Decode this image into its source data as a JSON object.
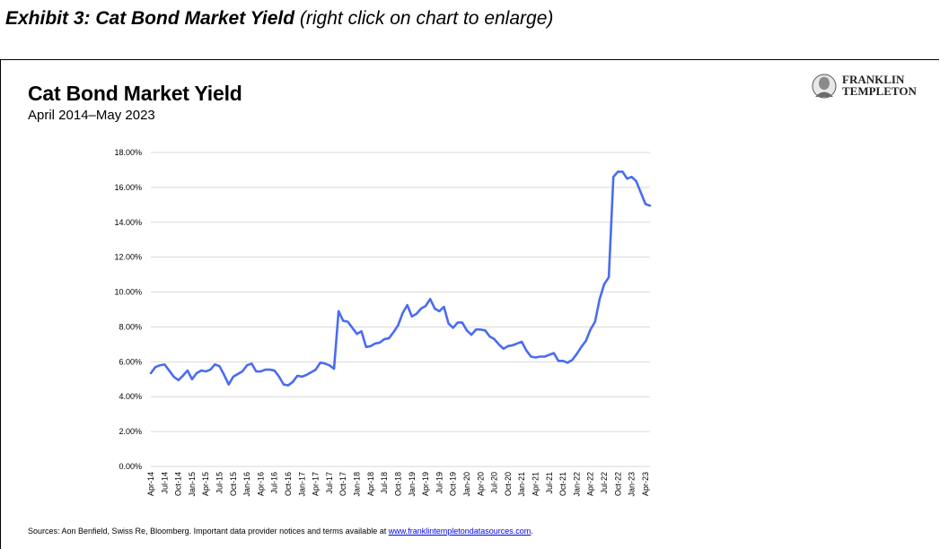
{
  "heading": {
    "bold": "Exhibit 3: Cat Bond Market Yield",
    "note": "(right click on chart to enlarge)"
  },
  "logo": {
    "line1": "FRANKLIN",
    "line2": "TEMPLETON"
  },
  "footer": {
    "text": "Sources: Aon Benfield, Swiss Re, Bloomberg. Important data provider notices and terms available at ",
    "link": "www.franklintempletondatasources.com",
    "end": "."
  },
  "colors": {
    "line": "#4a6cf0",
    "grid": "#d9d9d9"
  },
  "chart_data": {
    "type": "line",
    "title": "Cat Bond Market Yield",
    "subtitle": "April 2014–May 2023",
    "xlabel": "",
    "ylabel": "",
    "ylim": [
      0,
      18
    ],
    "y_ticks": [
      "0.00%",
      "2.00%",
      "4.00%",
      "6.00%",
      "8.00%",
      "10.00%",
      "12.00%",
      "14.00%",
      "16.00%",
      "18.00%"
    ],
    "x_ticks": [
      "Apr-14",
      "Jul-14",
      "Oct-14",
      "Jan-15",
      "Apr-15",
      "Jul-15",
      "Oct-15",
      "Jan-16",
      "Apr-16",
      "Jul-16",
      "Oct-16",
      "Jan-17",
      "Apr-17",
      "Jul-17",
      "Oct-17",
      "Jan-18",
      "Apr-18",
      "Jul-18",
      "Oct-18",
      "Jan-19",
      "Apr-19",
      "Jul-19",
      "Oct-19",
      "Jan-20",
      "Apr-20",
      "Jul-20",
      "Oct-20",
      "Jan-21",
      "Apr-21",
      "Jul-21",
      "Oct-21",
      "Jan-22",
      "Apr-22",
      "Jul-22",
      "Oct-22",
      "Jan-23",
      "Apr-23"
    ],
    "grid": true,
    "legend": "none",
    "series": [
      {
        "values": [
          5.35,
          5.7,
          5.8,
          5.85,
          5.5,
          5.15,
          4.95,
          5.2,
          5.5,
          5.0,
          5.35,
          5.5,
          5.45,
          5.55,
          5.85,
          5.75,
          5.25,
          4.7,
          5.15,
          5.3,
          5.45,
          5.8,
          5.9,
          5.45,
          5.45,
          5.55,
          5.55,
          5.5,
          5.15,
          4.7,
          4.65,
          4.85,
          5.2,
          5.15,
          5.25,
          5.4,
          5.55,
          5.95,
          5.9,
          5.8,
          5.6,
          8.9,
          8.35,
          8.3,
          7.95,
          7.6,
          7.75,
          6.85,
          6.9,
          7.05,
          7.1,
          7.3,
          7.35,
          7.7,
          8.1,
          8.8,
          9.25,
          8.6,
          8.75,
          9.05,
          9.2,
          9.6,
          9.05,
          8.9,
          9.15,
          8.2,
          7.95,
          8.25,
          8.25,
          7.8,
          7.55,
          7.85,
          7.85,
          7.8,
          7.45,
          7.3,
          7.0,
          6.75,
          6.9,
          6.95,
          7.05,
          7.15,
          6.65,
          6.3,
          6.25,
          6.3,
          6.3,
          6.4,
          6.5,
          6.05,
          6.05,
          5.95,
          6.1,
          6.45,
          6.85,
          7.2,
          7.85,
          8.3,
          9.6,
          10.45,
          10.85,
          16.6,
          16.9,
          16.9,
          16.5,
          16.6,
          16.35,
          15.7,
          15.05,
          14.95
        ]
      }
    ]
  }
}
